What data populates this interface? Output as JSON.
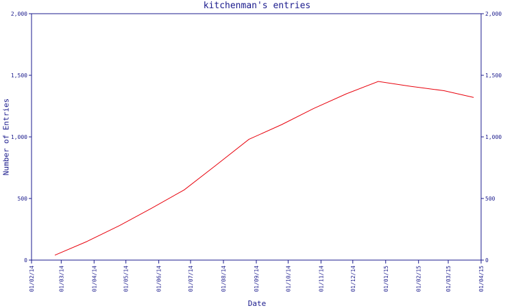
{
  "chart_data": {
    "type": "line",
    "title": "kitchenman's entries",
    "xlabel": "Date",
    "ylabel": "Number of Entries",
    "x_tick_labels": [
      "01/02/14",
      "01/03/14",
      "01/04/14",
      "01/05/14",
      "01/06/14",
      "01/07/14",
      "01/08/14",
      "01/09/14",
      "01/10/14",
      "01/11/14",
      "01/12/14",
      "01/01/15",
      "01/02/15",
      "01/03/15",
      "01/04/15"
    ],
    "y_tick_labels": [
      "0",
      "500",
      "1,000",
      "1,500",
      "2,000"
    ],
    "ylim": [
      0,
      2000
    ],
    "xlim": [
      "2014-02-01",
      "2015-04-01"
    ],
    "grid": false,
    "right_axis_mirrors_left": true,
    "series": [
      {
        "color": "#e8000b",
        "points": [
          {
            "x": "2014-02-23",
            "y": 40
          },
          {
            "x": "2014-03-25",
            "y": 150
          },
          {
            "x": "2014-04-25",
            "y": 280
          },
          {
            "x": "2014-05-25",
            "y": 420
          },
          {
            "x": "2014-06-25",
            "y": 570
          },
          {
            "x": "2014-07-25",
            "y": 770
          },
          {
            "x": "2014-08-25",
            "y": 980
          },
          {
            "x": "2014-09-25",
            "y": 1100
          },
          {
            "x": "2014-10-25",
            "y": 1230
          },
          {
            "x": "2014-11-25",
            "y": 1350
          },
          {
            "x": "2014-12-25",
            "y": 1450
          },
          {
            "x": "2015-01-25",
            "y": 1410
          },
          {
            "x": "2015-02-25",
            "y": 1375
          },
          {
            "x": "2015-03-25",
            "y": 1320
          }
        ]
      }
    ],
    "colors": {
      "axis": "#1a1a8c",
      "line": "#e8000b"
    }
  }
}
